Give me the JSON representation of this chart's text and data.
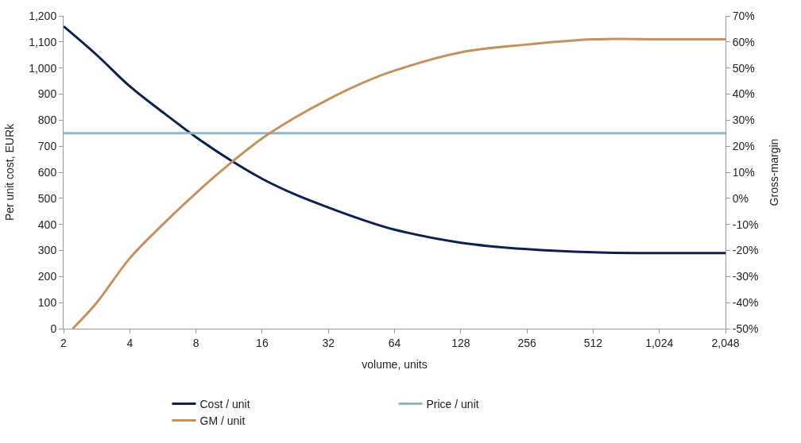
{
  "chart_data": {
    "type": "line",
    "xlabel": "volume, units",
    "ylabel": "Per unit cost, EURk",
    "y2label": "Gross-margin",
    "log": "x",
    "legend": "bottom",
    "marker": "none",
    "line_style": "solid",
    "xlim": [
      2,
      2048
    ],
    "xticks": [
      2,
      4,
      8,
      16,
      32,
      64,
      128,
      256,
      512,
      {
        "value": 1024,
        "label": "1,024"
      },
      {
        "value": 2048,
        "label": "2,048"
      }
    ],
    "ylim": [
      0,
      1200
    ],
    "yticks": [
      0,
      100,
      200,
      300,
      400,
      500,
      600,
      700,
      800,
      900,
      {
        "value": 1000,
        "label": "1,000"
      },
      {
        "value": 1100,
        "label": "1,100"
      },
      {
        "value": 1200,
        "label": "1,200"
      }
    ],
    "y2lim": [
      -50,
      70
    ],
    "y2ticks": [
      {
        "value": -50,
        "label": "-50%"
      },
      {
        "value": -40,
        "label": "-40%"
      },
      {
        "value": -30,
        "label": "-30%"
      },
      {
        "value": -20,
        "label": "-20%"
      },
      {
        "value": -10,
        "label": "-10%"
      },
      {
        "value": 0,
        "label": "0%"
      },
      {
        "value": 10,
        "label": "10%"
      },
      {
        "value": 20,
        "label": "20%"
      },
      {
        "value": 30,
        "label": "30%"
      },
      {
        "value": 40,
        "label": "40%"
      },
      {
        "value": 50,
        "label": "50%"
      },
      {
        "value": 60,
        "label": "60%"
      },
      {
        "value": 70,
        "label": "70%"
      }
    ],
    "series": [
      {
        "name": "Cost / unit",
        "color": "#0d2150",
        "x": [
          2,
          2.83,
          4,
          5.66,
          8,
          11.3,
          16,
          22.6,
          32,
          45,
          64,
          128,
          256,
          512,
          1024,
          2048
        ],
        "values": [
          1160,
          1050,
          930,
          830,
          735,
          650,
          575,
          515,
          465,
          420,
          380,
          330,
          305,
          293,
          290,
          290
        ]
      },
      {
        "name": "Price / unit",
        "color": "#8fb8c6",
        "x": [
          2,
          2048
        ],
        "values": [
          750,
          750
        ]
      },
      {
        "name": "GM / unit",
        "color": "#c5915e",
        "axis": "y2",
        "x": [
          2.2,
          2.83,
          4,
          5.66,
          8,
          11.3,
          16,
          22.6,
          32,
          45,
          64,
          128,
          256,
          512,
          1024,
          2048
        ],
        "values": [
          -50,
          -40,
          -23,
          -10,
          2,
          13,
          23,
          31,
          38,
          44,
          49,
          56,
          59,
          61,
          61,
          61
        ]
      }
    ]
  }
}
